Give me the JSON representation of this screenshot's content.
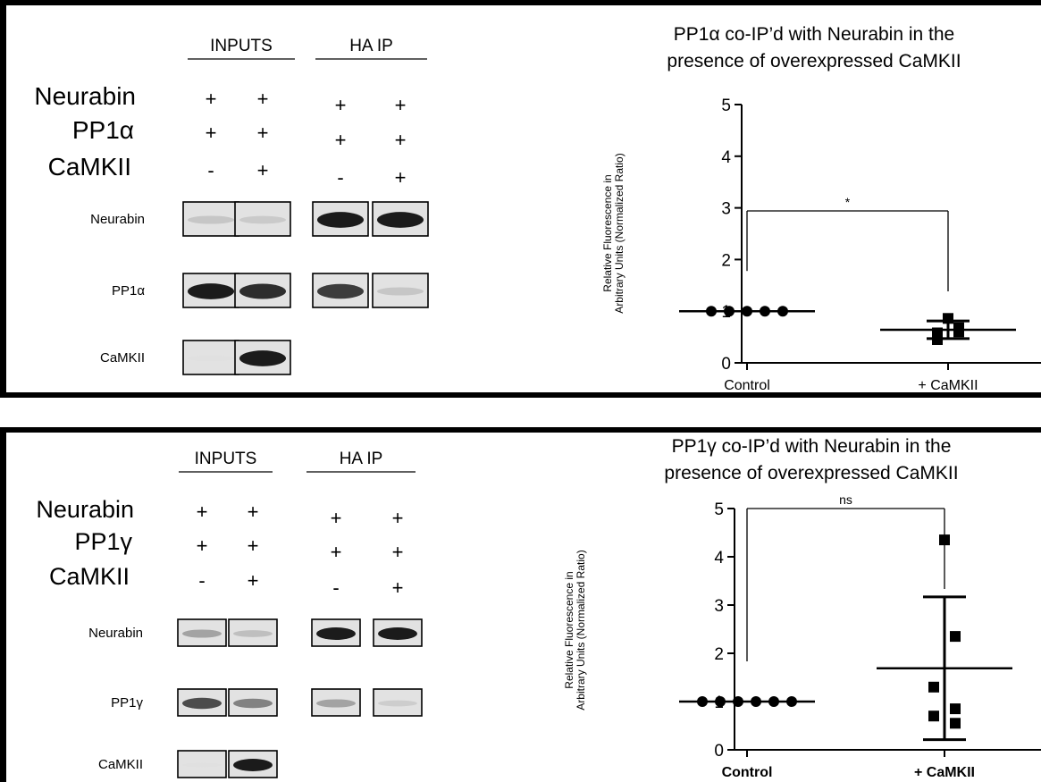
{
  "panels": [
    {
      "blot": {
        "group_headers": [
          "INPUTS",
          "HA IP"
        ],
        "condition_rows": [
          {
            "label": "Neurabin",
            "signs": [
              "+",
              "+",
              "+",
              "+"
            ]
          },
          {
            "label": "PP1α",
            "signs": [
              "+",
              "+",
              "+",
              "+"
            ]
          },
          {
            "label": "CaMKII",
            "signs": [
              "-",
              "+",
              "-",
              "+"
            ]
          }
        ],
        "bands": [
          {
            "label": "Neurabin",
            "intensity": [
              0.25,
              0.22,
              0.95,
              0.95
            ]
          },
          {
            "label": "PP1α",
            "intensity": [
              0.95,
              0.9,
              0.85,
              0.25
            ]
          },
          {
            "label": "CaMKII",
            "intensity": [
              0.02,
              0.95,
              null,
              null
            ]
          }
        ]
      },
      "chart_data": {
        "type": "scatter",
        "title_lines": [
          "PP1α co-IP’d with Neurabin in the",
          "presence of overexpressed CaMKII"
        ],
        "ylabel_lines": [
          "Relative Fluorescence in",
          "Arbitrary Units (Normalized Ratio)"
        ],
        "ylim": [
          0,
          5
        ],
        "yticks": [
          "0",
          "1",
          "2",
          "3",
          "4",
          "5"
        ],
        "categories": [
          "Control",
          "+ CaMKII"
        ],
        "series": [
          {
            "marker": "circle",
            "values": [
              1,
              1,
              1,
              1,
              1
            ],
            "mean": 1,
            "sd": 0
          },
          {
            "marker": "square",
            "values": [
              0.86,
              0.68,
              0.45,
              0.6,
              0.58
            ],
            "mean": 0.64,
            "sd": 0.17
          }
        ],
        "significance": {
          "label": "*",
          "from": 0,
          "to": 1,
          "y": 3.0
        }
      }
    },
    {
      "blot": {
        "group_headers": [
          "INPUTS",
          "HA IP"
        ],
        "condition_rows": [
          {
            "label": "Neurabin",
            "signs": [
              "+",
              "+",
              "+",
              "+"
            ]
          },
          {
            "label": "PP1γ",
            "signs": [
              "+",
              "+",
              "+",
              "+"
            ]
          },
          {
            "label": "CaMKII",
            "signs": [
              "-",
              "+",
              "-",
              "+"
            ]
          }
        ],
        "bands": [
          {
            "label": "Neurabin",
            "intensity": [
              0.45,
              0.3,
              0.95,
              0.95
            ]
          },
          {
            "label": "PP1γ",
            "intensity": [
              0.8,
              0.6,
              0.45,
              0.2
            ]
          },
          {
            "label": "CaMKII",
            "intensity": [
              0.02,
              0.95,
              null,
              null
            ]
          }
        ]
      },
      "chart_data": {
        "type": "scatter",
        "title_lines": [
          "PP1γ co-IP’d with Neurabin in the",
          "presence of overexpressed CaMKII"
        ],
        "ylabel_lines": [
          "Relative Fluorescence in",
          "Arbitrary Units (Normalized Ratio)"
        ],
        "ylim": [
          0,
          5
        ],
        "yticks": [
          "0",
          "1",
          "2",
          "3",
          "4",
          "5"
        ],
        "categories": [
          "Control",
          "+ CaMKII"
        ],
        "bold_categories": true,
        "series": [
          {
            "marker": "circle",
            "values": [
              1,
              1,
              1,
              1,
              1,
              1
            ],
            "mean": 1,
            "sd": 0
          },
          {
            "marker": "square",
            "values": [
              4.35,
              2.35,
              1.3,
              0.85,
              0.7,
              0.55
            ],
            "mean": 1.69,
            "sd": 1.48
          }
        ],
        "significance": {
          "label": "ns",
          "from": 0,
          "to": 1,
          "y": 5.0
        }
      }
    }
  ]
}
